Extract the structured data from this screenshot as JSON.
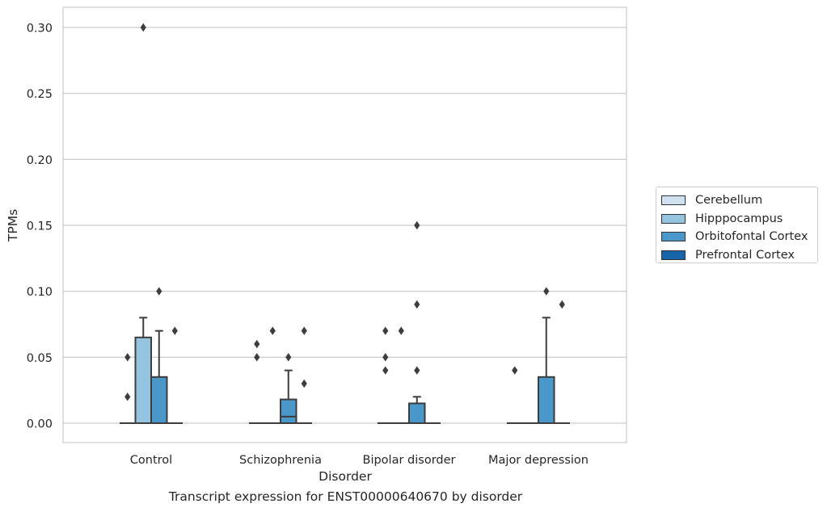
{
  "chart_data": {
    "type": "box",
    "title": "",
    "caption": "Transcript expression for ENST00000640670 by disorder",
    "xlabel": "Disorder",
    "ylabel": "TPMs",
    "ylim": [
      -0.015,
      0.315
    ],
    "yticks": [
      0.0,
      0.05,
      0.1,
      0.15,
      0.2,
      0.25,
      0.3
    ],
    "ytick_labels": [
      "0.00",
      "0.05",
      "0.10",
      "0.15",
      "0.20",
      "0.25",
      "0.30"
    ],
    "grid": "horizontal",
    "legend_position": "right",
    "categories": [
      "Control",
      "Schizophrenia",
      "Bipolar disorder",
      "Major depression"
    ],
    "series": [
      {
        "name": "Cerebellum",
        "color": "#d0e1f2",
        "boxes": [
          {
            "q1": 0,
            "median": 0,
            "q3": 0,
            "whisker_low": 0,
            "whisker_high": 0,
            "outliers": []
          },
          {
            "q1": 0,
            "median": 0,
            "q3": 0,
            "whisker_low": 0,
            "whisker_high": 0,
            "outliers": []
          },
          {
            "q1": 0,
            "median": 0,
            "q3": 0,
            "whisker_low": 0,
            "whisker_high": 0,
            "outliers": [
              0.07,
              0.05,
              0.04
            ]
          },
          {
            "q1": 0,
            "median": 0,
            "q3": 0,
            "whisker_low": 0,
            "whisker_high": 0,
            "outliers": []
          }
        ]
      },
      {
        "name": "Hipppocampus",
        "color": "#94c4df",
        "boxes": [
          {
            "q1": 0,
            "median": 0,
            "q3": 0.065,
            "whisker_low": 0,
            "whisker_high": 0.08,
            "outliers": [
              0.3
            ]
          },
          {
            "q1": 0,
            "median": 0,
            "q3": 0,
            "whisker_low": 0,
            "whisker_high": 0,
            "outliers": [
              0.07
            ]
          },
          {
            "q1": 0,
            "median": 0,
            "q3": 0,
            "whisker_low": 0,
            "whisker_high": 0,
            "outliers": [
              0.07
            ]
          },
          {
            "q1": 0,
            "median": 0,
            "q3": 0,
            "whisker_low": 0,
            "whisker_high": 0,
            "outliers": []
          }
        ]
      },
      {
        "name": "Orbitofontal Cortex",
        "color": "#4a98c9",
        "boxes": [
          {
            "q1": 0,
            "median": 0,
            "q3": 0.035,
            "whisker_low": 0,
            "whisker_high": 0.07,
            "outliers": [
              0.1
            ]
          },
          {
            "q1": 0,
            "median": 0.005,
            "q3": 0.018,
            "whisker_low": 0,
            "whisker_high": 0.04,
            "outliers": [
              0.05
            ]
          },
          {
            "q1": 0,
            "median": 0,
            "q3": 0.015,
            "whisker_low": 0,
            "whisker_high": 0.02,
            "outliers": [
              0.15,
              0.09,
              0.04
            ]
          },
          {
            "q1": 0,
            "median": 0,
            "q3": 0.035,
            "whisker_low": 0,
            "whisker_high": 0.08,
            "outliers": [
              0.1
            ]
          }
        ]
      },
      {
        "name": "Prefrontal Cortex",
        "color": "#1764ab",
        "boxes": [
          {
            "q1": 0,
            "median": 0,
            "q3": 0,
            "whisker_low": 0,
            "whisker_high": 0,
            "outliers": [
              0.07
            ]
          },
          {
            "q1": 0,
            "median": 0,
            "q3": 0,
            "whisker_low": 0,
            "whisker_high": 0,
            "outliers": [
              0.07,
              0.03
            ]
          },
          {
            "q1": 0,
            "median": 0,
            "q3": 0,
            "whisker_low": 0,
            "whisker_high": 0,
            "outliers": []
          },
          {
            "q1": 0,
            "median": 0,
            "q3": 0,
            "whisker_low": 0,
            "whisker_high": 0,
            "outliers": [
              0.09
            ]
          }
        ]
      }
    ],
    "extra_outliers": [
      {
        "category": 0,
        "series": 0,
        "values": [
          0.05,
          0.02
        ]
      },
      {
        "category": 1,
        "series": 0,
        "values": [
          0.06,
          0.05
        ]
      },
      {
        "category": 3,
        "series": 0,
        "values": [
          0.04
        ]
      }
    ]
  }
}
